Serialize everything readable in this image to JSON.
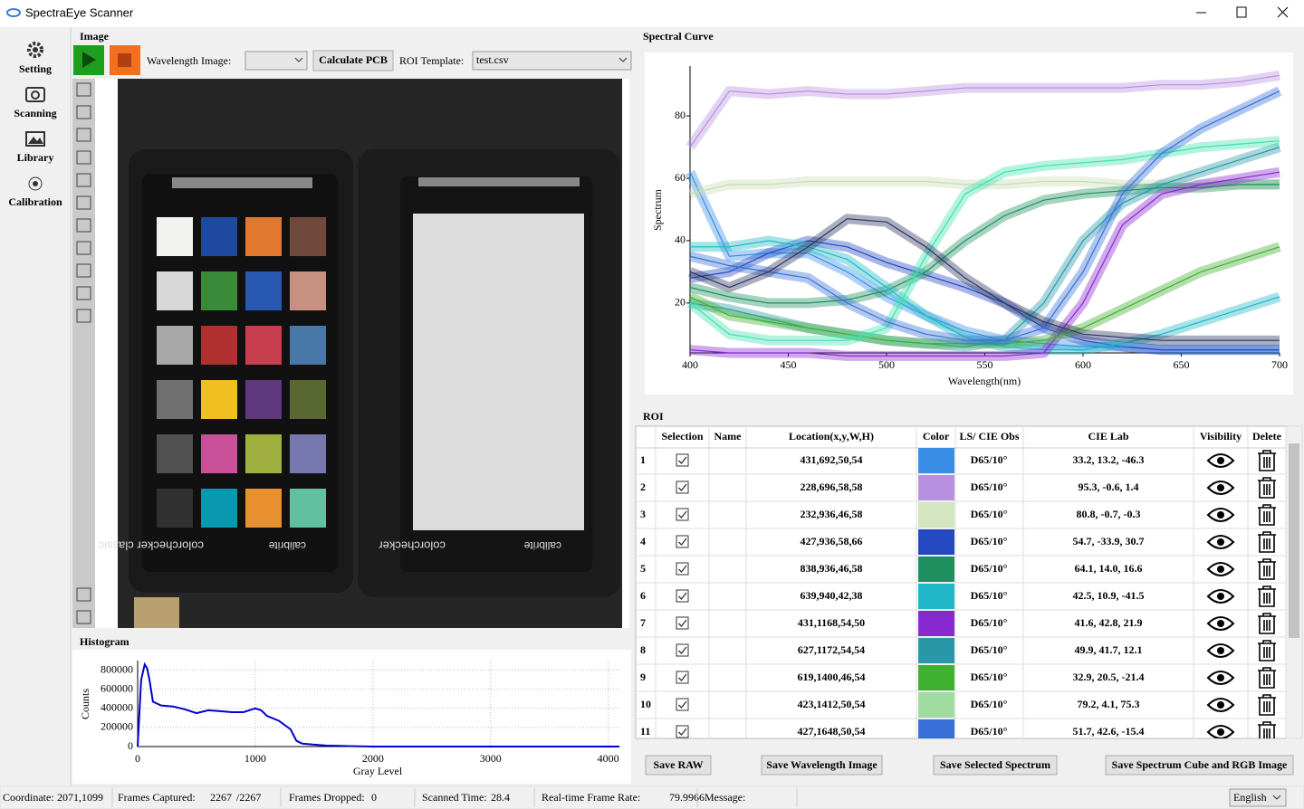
{
  "title_bar": {
    "title": "SpectraEye Scanner"
  },
  "sidebar": {
    "items": [
      "Setting",
      "Scanning",
      "Library",
      "Calibration"
    ]
  },
  "image_panel": {
    "title": "Image",
    "wavelength_label": "Wavelength Image:",
    "calculate_button": "Calculate PCB",
    "roi_template_label": "ROI Template:",
    "roi_template_value": "test.csv",
    "photo_labels": [
      "colorchecker classic",
      "calibrite",
      "colorchecker",
      "calibrite"
    ]
  },
  "chart_data": [
    {
      "type": "line",
      "title": "Histogram",
      "x_label": "Gray Level",
      "y_label": "Counts",
      "color": "#0000d0",
      "grid": true,
      "x": [
        0,
        30,
        60,
        80,
        100,
        130,
        200,
        300,
        400,
        500,
        600,
        700,
        800,
        900,
        1000,
        1050,
        1100,
        1200,
        1300,
        1350,
        1400,
        1500,
        1600,
        1800,
        2000,
        2500,
        4095
      ],
      "values": [
        0,
        700000,
        860000,
        820000,
        700000,
        470000,
        430000,
        420000,
        390000,
        350000,
        380000,
        370000,
        360000,
        360000,
        400000,
        380000,
        320000,
        270000,
        180000,
        60000,
        30000,
        20000,
        10000,
        5000,
        0,
        0,
        0
      ],
      "xlim": [
        0,
        4095
      ],
      "ylim": [
        0,
        900000
      ],
      "xticks": [
        0,
        1000,
        2000,
        3000,
        4000
      ],
      "yticks": [
        0,
        200000,
        400000,
        600000,
        800000
      ]
    },
    {
      "type": "line",
      "title": "Spectral Curve",
      "x_label": "Wavelength(nm)",
      "y_label": "Spectrum",
      "grid": false,
      "x": [
        400,
        420,
        440,
        460,
        480,
        500,
        520,
        540,
        560,
        580,
        600,
        620,
        640,
        660,
        680,
        700
      ],
      "xlim": [
        400,
        700
      ],
      "ylim": [
        4,
        96
      ],
      "xticks": [
        400,
        450,
        500,
        550,
        600,
        650,
        700
      ],
      "yticks": [
        20,
        40,
        60,
        80
      ],
      "series": [
        {
          "color": "#3a8ee6",
          "values": [
            62,
            35,
            36,
            36,
            30,
            22,
            16,
            11,
            8,
            7,
            6,
            6,
            5,
            5,
            5,
            5
          ]
        },
        {
          "color": "#b890e0",
          "values": [
            70,
            88,
            87,
            88,
            87,
            87,
            88,
            89,
            89,
            89,
            89,
            89,
            90,
            90,
            91,
            93
          ]
        },
        {
          "color": "#c8dcb4",
          "values": [
            55,
            58,
            58,
            59,
            59,
            59,
            59,
            58,
            58,
            59,
            59,
            58,
            58,
            58,
            58,
            58
          ]
        },
        {
          "color": "#2448c0",
          "values": [
            28,
            30,
            36,
            40,
            38,
            33,
            29,
            25,
            20,
            12,
            8,
            6,
            5,
            5,
            5,
            5
          ]
        },
        {
          "color": "#1e9060",
          "values": [
            25,
            22,
            20,
            20,
            21,
            24,
            30,
            40,
            48,
            53,
            55,
            56,
            57,
            57,
            58,
            58
          ]
        },
        {
          "color": "#20b8c8",
          "values": [
            38,
            38,
            40,
            38,
            34,
            25,
            16,
            9,
            6,
            5,
            5,
            7,
            10,
            14,
            18,
            22
          ]
        },
        {
          "color": "#8828d0",
          "values": [
            5,
            4,
            4,
            4,
            3,
            3,
            3,
            3,
            3,
            4,
            20,
            45,
            55,
            58,
            60,
            62
          ]
        },
        {
          "color": "#2898a8",
          "values": [
            20,
            18,
            15,
            12,
            10,
            8,
            7,
            6,
            8,
            20,
            40,
            52,
            58,
            62,
            66,
            70
          ]
        },
        {
          "color": "#40b030",
          "values": [
            22,
            16,
            14,
            12,
            10,
            8,
            7,
            7,
            7,
            8,
            12,
            18,
            24,
            30,
            34,
            38
          ]
        },
        {
          "color": "#40e0b0",
          "values": [
            20,
            10,
            8,
            8,
            8,
            12,
            35,
            55,
            62,
            64,
            65,
            66,
            68,
            70,
            71,
            72
          ]
        },
        {
          "color": "#3870d8",
          "values": [
            35,
            32,
            30,
            28,
            20,
            14,
            10,
            8,
            8,
            12,
            30,
            55,
            68,
            76,
            82,
            88
          ]
        },
        {
          "color": "#2a3560",
          "values": [
            30,
            25,
            30,
            38,
            47,
            46,
            38,
            28,
            20,
            14,
            10,
            9,
            8,
            8,
            8,
            8
          ]
        }
      ]
    }
  ],
  "roi_table": {
    "title": "ROI",
    "columns": [
      "Selection",
      "Name",
      "Location(x,y,W,H)",
      "Color",
      "LS/ CIE Obs",
      "CIE Lab",
      "Visibility",
      "Delete"
    ],
    "rows": [
      {
        "index": 1,
        "selected": true,
        "location": "431,692,50,54",
        "color": "#3a8ee6",
        "obs": "D65/10°",
        "lab": "33.2, 13.2, -46.3"
      },
      {
        "index": 2,
        "selected": true,
        "location": "228,696,58,58",
        "color": "#b890e0",
        "obs": "D65/10°",
        "lab": "95.3, -0.6, 1.4"
      },
      {
        "index": 3,
        "selected": true,
        "location": "232,936,46,58",
        "color": "#d4e6c0",
        "obs": "D65/10°",
        "lab": "80.8, -0.7, -0.3"
      },
      {
        "index": 4,
        "selected": true,
        "location": "427,936,58,66",
        "color": "#2448c0",
        "obs": "D65/10°",
        "lab": "54.7, -33.9, 30.7"
      },
      {
        "index": 5,
        "selected": true,
        "location": "838,936,46,58",
        "color": "#1e9060",
        "obs": "D65/10°",
        "lab": "64.1, 14.0, 16.6"
      },
      {
        "index": 6,
        "selected": true,
        "location": "639,940,42,38",
        "color": "#20b8c8",
        "obs": "D65/10°",
        "lab": "42.5, 10.9, -41.5"
      },
      {
        "index": 7,
        "selected": true,
        "location": "431,1168,54,50",
        "color": "#8828d0",
        "obs": "D65/10°",
        "lab": "41.6, 42.8, 21.9"
      },
      {
        "index": 8,
        "selected": true,
        "location": "627,1172,54,54",
        "color": "#2898a8",
        "obs": "D65/10°",
        "lab": "49.9, 41.7, 12.1"
      },
      {
        "index": 9,
        "selected": true,
        "location": "619,1400,46,54",
        "color": "#40b030",
        "obs": "D65/10°",
        "lab": "32.9, 20.5, -21.4"
      },
      {
        "index": 10,
        "selected": true,
        "location": "423,1412,50,54",
        "color": "#a0dca0",
        "obs": "D65/10°",
        "lab": "79.2, 4.1, 75.3"
      },
      {
        "index": 11,
        "selected": true,
        "location": "427,1648,50,54",
        "color": "#3870d8",
        "obs": "D65/10°",
        "lab": "51.7, 42.6, -15.4"
      }
    ]
  },
  "buttons": [
    "Save RAW",
    "Save Wavelength Image",
    "Save Selected Spectrum",
    "Save Spectrum Cube and RGB Image"
  ],
  "status_bar": {
    "coordinate_label": "Coordinate:",
    "coordinate": "2071,1099",
    "frames_captured_label": "Frames Captured:",
    "frames_captured": "2267",
    "frames_total": "/2267",
    "frames_dropped_label": "Frames Dropped:",
    "frames_dropped": "0",
    "scanned_time_label": "Scanned Time:",
    "scanned_time": "28.4",
    "frame_rate_label": "Real-time Frame Rate:",
    "frame_rate": "79.9966",
    "message_label": "Message:",
    "language": "English"
  }
}
